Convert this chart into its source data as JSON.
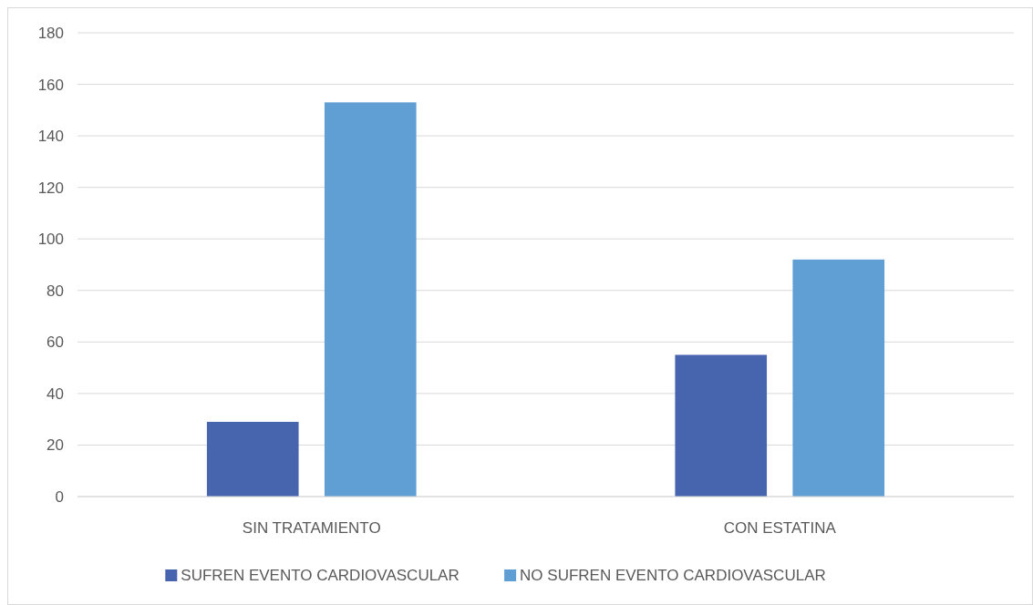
{
  "chart_data": {
    "type": "bar",
    "categories": [
      "SIN TRATAMIENTO",
      "CON ESTATINA"
    ],
    "series": [
      {
        "name": "SUFREN EVENTO CARDIOVASCULAR",
        "color": "#4765ae",
        "values": [
          29,
          55
        ]
      },
      {
        "name": "NO SUFREN EVENTO CARDIOVASCULAR",
        "color": "#609fd4",
        "values": [
          153,
          92
        ]
      }
    ],
    "ylim": [
      0,
      180
    ],
    "yticks": [
      0,
      20,
      40,
      60,
      80,
      100,
      120,
      140,
      160,
      180
    ],
    "grid": "y",
    "legend": "bottom"
  }
}
